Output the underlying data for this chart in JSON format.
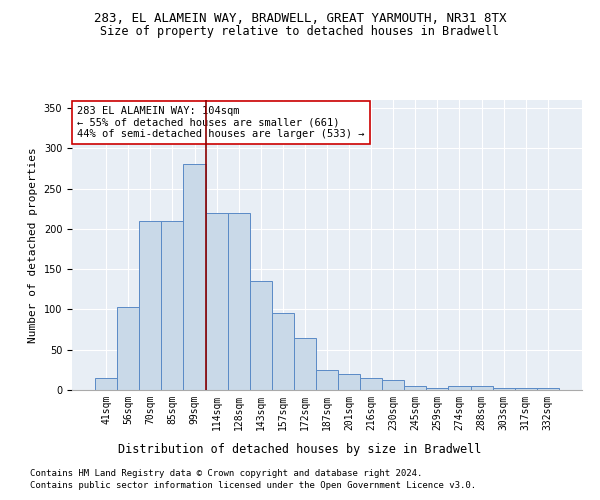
{
  "title1": "283, EL ALAMEIN WAY, BRADWELL, GREAT YARMOUTH, NR31 8TX",
  "title2": "Size of property relative to detached houses in Bradwell",
  "xlabel": "Distribution of detached houses by size in Bradwell",
  "ylabel": "Number of detached properties",
  "categories": [
    "41sqm",
    "56sqm",
    "70sqm",
    "85sqm",
    "99sqm",
    "114sqm",
    "128sqm",
    "143sqm",
    "157sqm",
    "172sqm",
    "187sqm",
    "201sqm",
    "216sqm",
    "230sqm",
    "245sqm",
    "259sqm",
    "274sqm",
    "288sqm",
    "303sqm",
    "317sqm",
    "332sqm"
  ],
  "values": [
    15,
    103,
    210,
    210,
    280,
    220,
    220,
    135,
    95,
    65,
    25,
    20,
    15,
    13,
    5,
    2,
    5,
    5,
    2,
    2,
    2
  ],
  "bar_color": "#c9d9e8",
  "bar_edge_color": "#5a8ac6",
  "vline_color": "#8b0000",
  "annotation_text": "283 EL ALAMEIN WAY: 104sqm\n← 55% of detached houses are smaller (661)\n44% of semi-detached houses are larger (533) →",
  "annotation_box_color": "#ffffff",
  "annotation_box_edge": "#cc0000",
  "footer1": "Contains HM Land Registry data © Crown copyright and database right 2024.",
  "footer2": "Contains public sector information licensed under the Open Government Licence v3.0.",
  "plot_bg_color": "#e8eef5",
  "fig_bg_color": "#ffffff",
  "ylim": [
    0,
    360
  ],
  "title1_fontsize": 9,
  "title2_fontsize": 8.5,
  "xlabel_fontsize": 8.5,
  "ylabel_fontsize": 8,
  "tick_fontsize": 7,
  "annotation_fontsize": 7.5,
  "footer_fontsize": 6.5
}
